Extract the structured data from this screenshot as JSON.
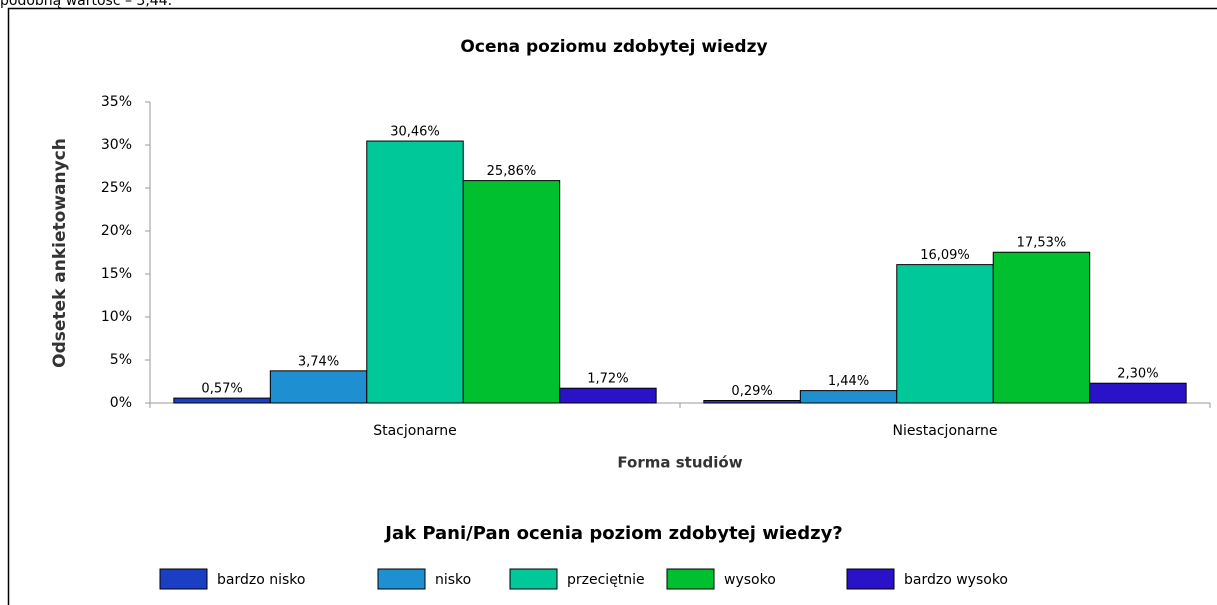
{
  "caption_above": "podobną wartość – 3,44.",
  "chart_data": {
    "type": "bar",
    "title": "Ocena poziomu zdobytej wiedzy",
    "y_label": "Odsetek ankietowanych",
    "x_label": "Forma studiów",
    "legend_title": "Jak Pani/Pan ocenia poziom zdobytej wiedzy?",
    "categories": [
      "Stacjonarne",
      "Niestacjonarne"
    ],
    "series": [
      {
        "name": "bardzo nisko",
        "color": "#1b3fc4",
        "values": [
          0.57,
          0.29
        ],
        "value_labels": [
          "0,57%",
          "0,29%"
        ]
      },
      {
        "name": "nisko",
        "color": "#1e8fd0",
        "values": [
          3.74,
          1.44
        ],
        "value_labels": [
          "3,74%",
          "1,44%"
        ]
      },
      {
        "name": "przeciętnie",
        "color": "#00c898",
        "values": [
          30.46,
          16.09
        ],
        "value_labels": [
          "30,46%",
          "16,09%"
        ]
      },
      {
        "name": "wysoko",
        "color": "#00c030",
        "values": [
          25.86,
          17.53
        ],
        "value_labels": [
          "25,86%",
          "17,53%"
        ]
      },
      {
        "name": "bardzo wysoko",
        "color": "#2a12c8",
        "values": [
          1.72,
          2.3
        ],
        "value_labels": [
          "1,72%",
          "2,30%"
        ]
      }
    ],
    "ylim": [
      0,
      35
    ],
    "yticks": [
      {
        "value": 0,
        "label": "0%"
      },
      {
        "value": 5,
        "label": "5%"
      },
      {
        "value": 10,
        "label": "10%"
      },
      {
        "value": 15,
        "label": "15%"
      },
      {
        "value": 20,
        "label": "20%"
      },
      {
        "value": 25,
        "label": "25%"
      },
      {
        "value": 30,
        "label": "30%"
      },
      {
        "value": 35,
        "label": "35%"
      }
    ],
    "legend": "bottom"
  }
}
